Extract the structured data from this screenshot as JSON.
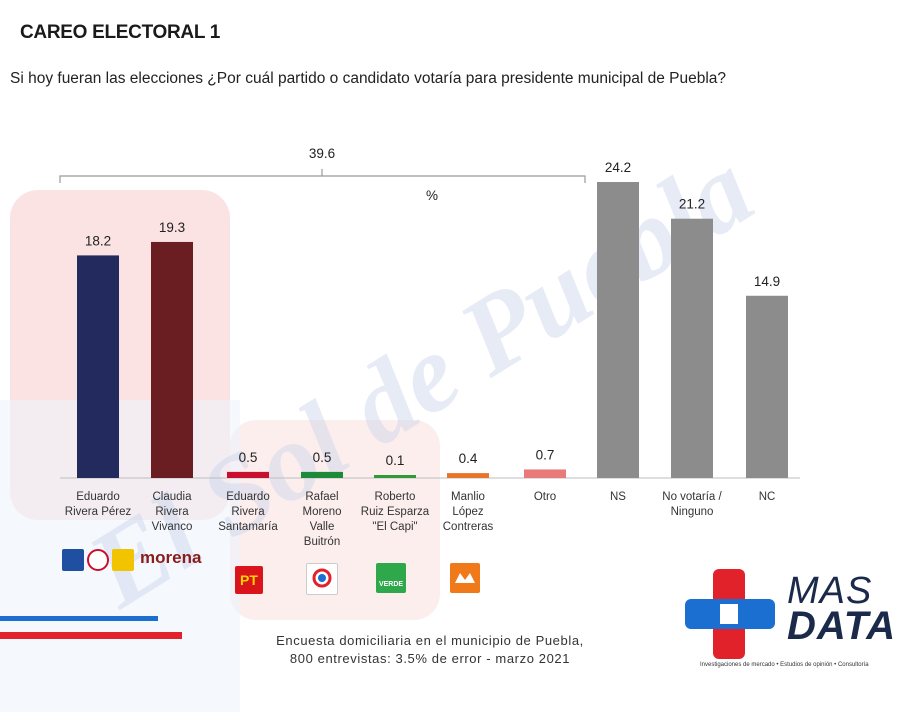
{
  "header": {
    "title": "CAREO ELECTORAL 1",
    "subtitle": "Si hoy fueran las elecciones ¿Por cuál partido o candidato votaría para presidente municipal de Puebla?"
  },
  "chart_data": {
    "type": "bar",
    "unit_label": "%",
    "bracket_label": "39.6",
    "ylim": [
      0,
      26
    ],
    "categories": [
      [
        "Eduardo",
        "Rivera Pérez"
      ],
      [
        "Claudia",
        "Rivera",
        "Vivanco"
      ],
      [
        "Eduardo",
        "Rivera",
        "Santamaría"
      ],
      [
        "Rafael",
        "Moreno",
        "Valle",
        "Buitrón"
      ],
      [
        "Roberto",
        "Ruiz Esparza",
        "\"El Capi\""
      ],
      [
        "Manlio",
        "López",
        "Contreras"
      ],
      [
        "Otro"
      ],
      [
        "NS"
      ],
      [
        "No votaría /",
        "Ninguno"
      ],
      [
        "NC"
      ]
    ],
    "values": [
      18.2,
      19.3,
      0.5,
      0.5,
      0.1,
      0.4,
      0.7,
      24.2,
      21.2,
      14.9
    ],
    "value_labels": [
      "18.2",
      "19.3",
      "0.5",
      "0.5",
      "0.1",
      "0.4",
      "0.7",
      "24.2",
      "21.2",
      "14.9"
    ],
    "colors": [
      "#222a5e",
      "#6a1e22",
      "#c8102e",
      "#1c8a3a",
      "#2e9a3a",
      "#e8742a",
      "#e87a7a",
      "#8c8c8c",
      "#8c8c8c",
      "#8c8c8c"
    ]
  },
  "party_logos": {
    "morena_text": "morena",
    "pt_text": "PT",
    "verde_text": "VERDE"
  },
  "footnote": {
    "line1": "Encuesta domiciliaria en el municipio de Puebla,",
    "line2": "800 entrevistas: 3.5% de error - marzo 2021"
  },
  "brand": {
    "line1": "MAS",
    "line2": "DATA",
    "tagline": "Investigaciones de mercado • Estudios de opinión • Consultoría",
    "blue": "#1a6fd0",
    "red": "#e2222b"
  },
  "watermark": {
    "text": "El Sol de Puebla"
  }
}
